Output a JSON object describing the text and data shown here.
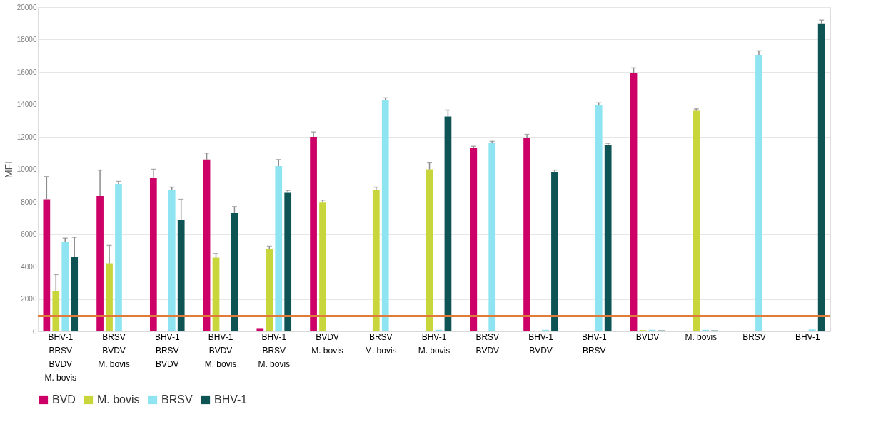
{
  "chart_data": {
    "type": "bar",
    "ylabel": "MFI",
    "categories": [
      "BHV-1\nBRSV\nBVDV\nM. bovis",
      "BRSV\nBVDV\nM. bovis",
      "BHV-1\nBRSV\nBVDV",
      "BHV-1\nBVDV\nM. bovis",
      "BHV-1\nBRSV\nM. bovis",
      "BVDV\nM. bovis",
      "BRSV\nM. bovis",
      "BHV-1\nM. bovis",
      "BRSV\nBVDV",
      "BHV-1\nBVDV",
      "BHV-1\nBRSV",
      "BVDV",
      "M. bovis",
      "BRSV",
      "BHV-1"
    ],
    "series": [
      {
        "name": "BVD",
        "color": "#cc0066",
        "values": [
          8150,
          8350,
          9450,
          10600,
          200,
          12000,
          30,
          null,
          11300,
          11950,
          40,
          15950,
          30,
          null,
          null
        ],
        "errors": [
          1400,
          1600,
          550,
          400,
          null,
          300,
          null,
          null,
          120,
          200,
          null,
          300,
          null,
          null,
          null
        ]
      },
      {
        "name": "M. bovis",
        "color": "#c8d63c",
        "values": [
          2500,
          4200,
          30,
          4550,
          5100,
          7950,
          8700,
          10000,
          null,
          null,
          40,
          80,
          13600,
          null,
          null
        ],
        "errors": [
          1000,
          1100,
          null,
          250,
          150,
          150,
          200,
          400,
          null,
          null,
          null,
          null,
          120,
          null,
          null
        ]
      },
      {
        "name": "BRSV",
        "color": "#8ee4f0",
        "values": [
          5500,
          9100,
          8750,
          50,
          10200,
          40,
          14250,
          100,
          11600,
          100,
          13950,
          100,
          100,
          17050,
          120
        ],
        "errors": [
          250,
          150,
          150,
          null,
          400,
          null,
          150,
          null,
          120,
          null,
          150,
          null,
          null,
          250,
          null
        ]
      },
      {
        "name": "BHV-1",
        "color": "#0e5454",
        "values": [
          4600,
          null,
          6900,
          7300,
          8550,
          null,
          null,
          13250,
          null,
          9850,
          11500,
          60,
          60,
          30,
          19000
        ],
        "errors": [
          1200,
          null,
          1250,
          400,
          150,
          null,
          null,
          400,
          null,
          100,
          100,
          null,
          null,
          null,
          200
        ]
      }
    ],
    "ylim": [
      0,
      20000
    ],
    "yticks": [
      0,
      2000,
      4000,
      6000,
      8000,
      10000,
      12000,
      14000,
      16000,
      18000,
      20000
    ],
    "grid": "y",
    "legend": "bottom",
    "ref_lines": [
      {
        "axis": "y",
        "value": 950,
        "color": "#e07b39"
      }
    ]
  }
}
